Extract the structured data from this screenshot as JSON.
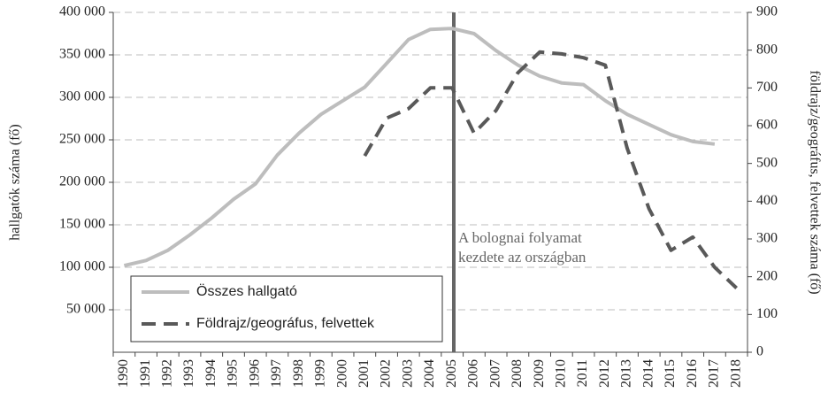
{
  "chart_data": {
    "type": "line",
    "categories": [
      "1990",
      "1991",
      "1992",
      "1993",
      "1994",
      "1995",
      "1996",
      "1997",
      "1998",
      "1999",
      "2000",
      "2001",
      "2002",
      "2003",
      "2004",
      "2005",
      "2006",
      "2007",
      "2008",
      "2009",
      "2010",
      "2011",
      "2012",
      "2013",
      "2014",
      "2015",
      "2016",
      "2017",
      "2018"
    ],
    "series": [
      {
        "name": "Összes hallgató",
        "color": "#bdbdbd",
        "axis": "y",
        "values": [
          102000,
          108000,
          120000,
          138000,
          158000,
          180000,
          198000,
          232000,
          258000,
          280000,
          296000,
          312000,
          340000,
          368000,
          380000,
          381000,
          375000,
          355000,
          338000,
          325000,
          317000,
          315000,
          296000,
          280000,
          268000,
          256000,
          248000,
          245000,
          null
        ]
      },
      {
        "name": "Földrajz/geográfus, felvettek",
        "color": "#595959",
        "axis": "y2",
        "dashed": true,
        "values": [
          null,
          null,
          null,
          null,
          null,
          null,
          null,
          null,
          null,
          null,
          null,
          520,
          620,
          645,
          700,
          700,
          580,
          640,
          740,
          795,
          790,
          780,
          760,
          540,
          380,
          270,
          305,
          225,
          170
        ]
      }
    ],
    "ylabel": "hallgatók száma (fő)",
    "y2label": "földrajz/geográfus, felvettek száma (fő)",
    "ylim": [
      0,
      400000
    ],
    "yticks": [
      {
        "value": 50000,
        "label": "50 000"
      },
      {
        "value": 100000,
        "label": "100 000"
      },
      {
        "value": 150000,
        "label": "150 000"
      },
      {
        "value": 200000,
        "label": "200 000"
      },
      {
        "value": 250000,
        "label": "250 000"
      },
      {
        "value": 300000,
        "label": "300 000"
      },
      {
        "value": 350000,
        "label": "350 000"
      },
      {
        "value": 400000,
        "label": "400 000"
      }
    ],
    "y2lim": [
      0,
      900
    ],
    "y2ticks": [
      0,
      100,
      200,
      300,
      400,
      500,
      600,
      700,
      800,
      900
    ],
    "annotation": [
      "A bolognai folyamat",
      "kezdete az országban"
    ],
    "grid": true,
    "legend": "lower left"
  }
}
